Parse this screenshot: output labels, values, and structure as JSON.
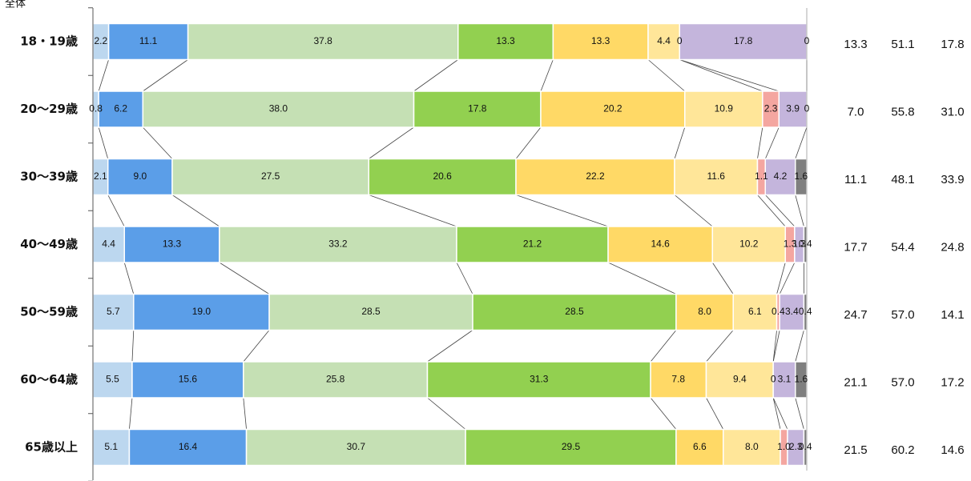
{
  "chart_data": {
    "type": "bar",
    "orientation": "horizontal",
    "stacked": "100%",
    "top_left_label": "全体",
    "categories": [
      "18・19歳",
      "20〜29歳",
      "30〜39歳",
      "40〜49歳",
      "50〜59歳",
      "60〜64歳",
      "65歳以上"
    ],
    "series": [
      {
        "color": "#bcd7ef",
        "values": [
          2.2,
          0.8,
          2.1,
          4.4,
          5.7,
          5.5,
          5.1
        ]
      },
      {
        "color": "#5b9ee8",
        "values": [
          11.1,
          6.2,
          9.0,
          13.3,
          19.0,
          15.6,
          16.4
        ]
      },
      {
        "color": "#c5e0b4",
        "values": [
          37.8,
          38.0,
          27.5,
          33.2,
          28.5,
          25.8,
          30.7
        ]
      },
      {
        "color": "#92d050",
        "values": [
          13.3,
          17.8,
          20.6,
          21.2,
          28.5,
          31.3,
          29.5
        ]
      },
      {
        "color": "#ffd966",
        "values": [
          13.3,
          20.2,
          22.2,
          14.6,
          8.0,
          7.8,
          6.6
        ]
      },
      {
        "color": "#ffe699",
        "values": [
          4.4,
          10.9,
          11.6,
          10.2,
          6.1,
          9.4,
          8.0
        ]
      },
      {
        "color": "#f4a6a0",
        "values": [
          0,
          2.3,
          1.1,
          1.3,
          0.4,
          0,
          1.0
        ]
      },
      {
        "color": "#c4b5dc",
        "values": [
          17.8,
          3.9,
          4.2,
          1.3,
          3.4,
          3.1,
          2.3
        ]
      },
      {
        "color": "#7f7f7f",
        "values": [
          0,
          0,
          1.6,
          0.4,
          0.4,
          1.6,
          0.4
        ]
      }
    ],
    "side_columns": [
      [
        13.3,
        51.1,
        17.8
      ],
      [
        7.0,
        55.8,
        31.0
      ],
      [
        11.1,
        48.1,
        33.9
      ],
      [
        17.7,
        54.4,
        24.8
      ],
      [
        24.7,
        57.0,
        14.1
      ],
      [
        21.1,
        57.0,
        17.2
      ],
      [
        21.5,
        60.2,
        14.6
      ]
    ],
    "xlim": [
      0,
      100
    ],
    "grid": false,
    "legend": "none",
    "connector_lines": true
  }
}
